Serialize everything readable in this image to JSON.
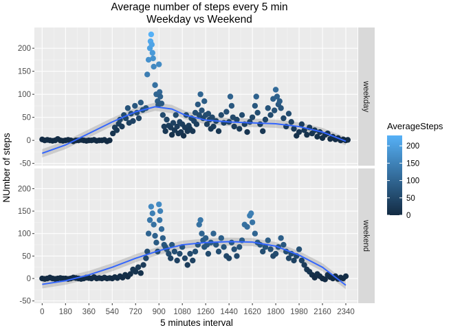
{
  "chart_data": {
    "type": "scatter",
    "title": [
      "Average number of steps every 5 min",
      "Weekday vs Weekend"
    ],
    "xlabel": "5 minutes interval",
    "ylabel": "NUmber of steps",
    "xlim": [
      -60,
      2430
    ],
    "ylim": [
      -55,
      245
    ],
    "x_ticks": [
      "0",
      "180",
      "360",
      "540",
      "720",
      "900",
      "1080",
      "1260",
      "1440",
      "1620",
      "1800",
      "1980",
      "2160",
      "2340"
    ],
    "y_ticks": [
      "-50",
      "0",
      "50",
      "100",
      "150",
      "200"
    ],
    "grid": true,
    "legend": {
      "title": "AverageSteps",
      "ticks": [
        "0",
        "50",
        "100",
        "150",
        "200"
      ],
      "min": 0,
      "max": 230,
      "color_low": "#132B43",
      "color_high": "#56B1F7",
      "placement": "right"
    },
    "smooth_color": "#3366FF",
    "panels": [
      {
        "label": "weekday",
        "points": [
          [
            0,
            2
          ],
          [
            20,
            0
          ],
          [
            40,
            1
          ],
          [
            60,
            0
          ],
          [
            80,
            -1
          ],
          [
            100,
            0
          ],
          [
            120,
            3
          ],
          [
            140,
            0
          ],
          [
            160,
            -1
          ],
          [
            180,
            0
          ],
          [
            200,
            1
          ],
          [
            220,
            0
          ],
          [
            240,
            -2
          ],
          [
            260,
            0
          ],
          [
            280,
            0
          ],
          [
            300,
            1
          ],
          [
            320,
            0
          ],
          [
            340,
            -1
          ],
          [
            360,
            0
          ],
          [
            380,
            0
          ],
          [
            400,
            1
          ],
          [
            420,
            -1
          ],
          [
            440,
            0
          ],
          [
            460,
            0
          ],
          [
            480,
            1
          ],
          [
            500,
            -2
          ],
          [
            520,
            0
          ],
          [
            545,
            15
          ],
          [
            560,
            28
          ],
          [
            575,
            22
          ],
          [
            590,
            36
          ],
          [
            600,
            45
          ],
          [
            615,
            30
          ],
          [
            630,
            55
          ],
          [
            645,
            48
          ],
          [
            660,
            70
          ],
          [
            670,
            38
          ],
          [
            685,
            58
          ],
          [
            700,
            42
          ],
          [
            715,
            75
          ],
          [
            730,
            60
          ],
          [
            745,
            48
          ],
          [
            760,
            82
          ],
          [
            775,
            66
          ],
          [
            800,
            70
          ],
          [
            810,
            143
          ],
          [
            820,
            175
          ],
          [
            830,
            200
          ],
          [
            835,
            215
          ],
          [
            840,
            230
          ],
          [
            845,
            208
          ],
          [
            850,
            190
          ],
          [
            855,
            178
          ],
          [
            860,
            160
          ],
          [
            870,
            120
          ],
          [
            880,
            100
          ],
          [
            890,
            85
          ],
          [
            895,
            77
          ],
          [
            900,
            165
          ],
          [
            905,
            105
          ],
          [
            910,
            95
          ],
          [
            920,
            80
          ],
          [
            930,
            55
          ],
          [
            940,
            30
          ],
          [
            950,
            20
          ],
          [
            960,
            45
          ],
          [
            975,
            32
          ],
          [
            990,
            28
          ],
          [
            1000,
            12
          ],
          [
            1010,
            38
          ],
          [
            1020,
            22
          ],
          [
            1030,
            55
          ],
          [
            1040,
            30
          ],
          [
            1050,
            15
          ],
          [
            1060,
            40
          ],
          [
            1070,
            18
          ],
          [
            1080,
            35
          ],
          [
            1090,
            10
          ],
          [
            1100,
            28
          ],
          [
            1110,
            55
          ],
          [
            1120,
            20
          ],
          [
            1130,
            32
          ],
          [
            1140,
            25
          ],
          [
            1150,
            48
          ],
          [
            1160,
            20
          ],
          [
            1170,
            42
          ],
          [
            1180,
            60
          ],
          [
            1190,
            35
          ],
          [
            1200,
            78
          ],
          [
            1210,
            55
          ],
          [
            1220,
            100
          ],
          [
            1230,
            65
          ],
          [
            1240,
            48
          ],
          [
            1250,
            85
          ],
          [
            1260,
            55
          ],
          [
            1270,
            35
          ],
          [
            1280,
            58
          ],
          [
            1290,
            45
          ],
          [
            1300,
            25
          ],
          [
            1310,
            50
          ],
          [
            1320,
            30
          ],
          [
            1340,
            42
          ],
          [
            1360,
            20
          ],
          [
            1380,
            55
          ],
          [
            1400,
            38
          ],
          [
            1420,
            62
          ],
          [
            1440,
            40
          ],
          [
            1450,
            95
          ],
          [
            1460,
            75
          ],
          [
            1470,
            50
          ],
          [
            1480,
            30
          ],
          [
            1500,
            45
          ],
          [
            1520,
            25
          ],
          [
            1540,
            55
          ],
          [
            1560,
            35
          ],
          [
            1580,
            18
          ],
          [
            1600,
            40
          ],
          [
            1620,
            50
          ],
          [
            1640,
            75
          ],
          [
            1650,
            95
          ],
          [
            1660,
            60
          ],
          [
            1680,
            35
          ],
          [
            1700,
            20
          ],
          [
            1720,
            45
          ],
          [
            1740,
            70
          ],
          [
            1760,
            55
          ],
          [
            1780,
            90
          ],
          [
            1790,
            65
          ],
          [
            1800,
            110
          ],
          [
            1810,
            95
          ],
          [
            1820,
            78
          ],
          [
            1830,
            85
          ],
          [
            1840,
            70
          ],
          [
            1860,
            48
          ],
          [
            1880,
            30
          ],
          [
            1900,
            58
          ],
          [
            1920,
            40
          ],
          [
            1940,
            25
          ],
          [
            1960,
            10
          ],
          [
            1980,
            18
          ],
          [
            2000,
            35
          ],
          [
            2020,
            22
          ],
          [
            2040,
            12
          ],
          [
            2060,
            28
          ],
          [
            2080,
            15
          ],
          [
            2100,
            22
          ],
          [
            2120,
            8
          ],
          [
            2140,
            18
          ],
          [
            2160,
            5
          ],
          [
            2180,
            12
          ],
          [
            2200,
            15
          ],
          [
            2220,
            3
          ],
          [
            2240,
            8
          ],
          [
            2260,
            2
          ],
          [
            2280,
            5
          ],
          [
            2300,
            0
          ],
          [
            2320,
            2
          ],
          [
            2340,
            0
          ],
          [
            2355,
            1
          ]
        ],
        "smooth": [
          [
            0,
            -28
          ],
          [
            180,
            -10
          ],
          [
            360,
            15
          ],
          [
            540,
            40
          ],
          [
            720,
            62
          ],
          [
            870,
            73
          ],
          [
            1000,
            68
          ],
          [
            1100,
            55
          ],
          [
            1260,
            44
          ],
          [
            1440,
            40
          ],
          [
            1620,
            38
          ],
          [
            1800,
            36
          ],
          [
            1980,
            30
          ],
          [
            2160,
            18
          ],
          [
            2340,
            -2
          ]
        ],
        "band_halfwidth": 9
      },
      {
        "label": "weekend",
        "points": [
          [
            0,
            0
          ],
          [
            20,
            -1
          ],
          [
            40,
            0
          ],
          [
            60,
            2
          ],
          [
            80,
            0
          ],
          [
            100,
            -1
          ],
          [
            120,
            0
          ],
          [
            140,
            1
          ],
          [
            160,
            0
          ],
          [
            180,
            0
          ],
          [
            200,
            -1
          ],
          [
            220,
            0
          ],
          [
            240,
            2
          ],
          [
            260,
            1
          ],
          [
            280,
            0
          ],
          [
            300,
            -1
          ],
          [
            320,
            0
          ],
          [
            340,
            2
          ],
          [
            360,
            1
          ],
          [
            380,
            0
          ],
          [
            400,
            3
          ],
          [
            420,
            0
          ],
          [
            440,
            1
          ],
          [
            460,
            0
          ],
          [
            480,
            2
          ],
          [
            500,
            0
          ],
          [
            520,
            1
          ],
          [
            540,
            0
          ],
          [
            560,
            3
          ],
          [
            580,
            1
          ],
          [
            600,
            5
          ],
          [
            620,
            2
          ],
          [
            640,
            8
          ],
          [
            660,
            4
          ],
          [
            680,
            10
          ],
          [
            700,
            20
          ],
          [
            720,
            15
          ],
          [
            740,
            25
          ],
          [
            760,
            12
          ],
          [
            780,
            30
          ],
          [
            800,
            45
          ],
          [
            810,
            60
          ],
          [
            820,
            100
          ],
          [
            830,
            130
          ],
          [
            840,
            160
          ],
          [
            850,
            145
          ],
          [
            860,
            120
          ],
          [
            870,
            95
          ],
          [
            880,
            80
          ],
          [
            890,
            60
          ],
          [
            900,
            165
          ],
          [
            905,
            130
          ],
          [
            910,
            150
          ],
          [
            920,
            110
          ],
          [
            930,
            90
          ],
          [
            940,
            75
          ],
          [
            950,
            70
          ],
          [
            960,
            65
          ],
          [
            975,
            55
          ],
          [
            990,
            45
          ],
          [
            1000,
            75
          ],
          [
            1020,
            60
          ],
          [
            1040,
            40
          ],
          [
            1060,
            55
          ],
          [
            1080,
            70
          ],
          [
            1100,
            45
          ],
          [
            1120,
            30
          ],
          [
            1140,
            55
          ],
          [
            1160,
            40
          ],
          [
            1180,
            60
          ],
          [
            1200,
            75
          ],
          [
            1210,
            120
          ],
          [
            1220,
            130
          ],
          [
            1230,
            100
          ],
          [
            1240,
            85
          ],
          [
            1250,
            70
          ],
          [
            1260,
            90
          ],
          [
            1270,
            75
          ],
          [
            1280,
            55
          ],
          [
            1300,
            80
          ],
          [
            1320,
            100
          ],
          [
            1340,
            75
          ],
          [
            1360,
            60
          ],
          [
            1380,
            90
          ],
          [
            1400,
            70
          ],
          [
            1420,
            50
          ],
          [
            1440,
            45
          ],
          [
            1460,
            80
          ],
          [
            1480,
            65
          ],
          [
            1500,
            50
          ],
          [
            1520,
            70
          ],
          [
            1540,
            85
          ],
          [
            1560,
            120
          ],
          [
            1580,
            115
          ],
          [
            1600,
            140
          ],
          [
            1610,
            145
          ],
          [
            1620,
            125
          ],
          [
            1640,
            100
          ],
          [
            1660,
            80
          ],
          [
            1680,
            75
          ],
          [
            1700,
            60
          ],
          [
            1720,
            70
          ],
          [
            1740,
            85
          ],
          [
            1760,
            65
          ],
          [
            1780,
            50
          ],
          [
            1800,
            55
          ],
          [
            1820,
            70
          ],
          [
            1840,
            90
          ],
          [
            1860,
            75
          ],
          [
            1880,
            60
          ],
          [
            1900,
            45
          ],
          [
            1920,
            55
          ],
          [
            1940,
            40
          ],
          [
            1960,
            50
          ],
          [
            1980,
            65
          ],
          [
            2000,
            40
          ],
          [
            2020,
            30
          ],
          [
            2040,
            20
          ],
          [
            2060,
            15
          ],
          [
            2080,
            8
          ],
          [
            2100,
            2
          ],
          [
            2120,
            10
          ],
          [
            2140,
            5
          ],
          [
            2160,
            0
          ],
          [
            2180,
            -2
          ],
          [
            2200,
            8
          ],
          [
            2220,
            3
          ],
          [
            2240,
            0
          ],
          [
            2260,
            5
          ],
          [
            2280,
            -1
          ],
          [
            2300,
            2
          ],
          [
            2320,
            0
          ],
          [
            2340,
            5
          ]
        ],
        "smooth": [
          [
            0,
            -13
          ],
          [
            180,
            -5
          ],
          [
            360,
            8
          ],
          [
            540,
            25
          ],
          [
            720,
            45
          ],
          [
            900,
            62
          ],
          [
            1080,
            75
          ],
          [
            1260,
            80
          ],
          [
            1440,
            82
          ],
          [
            1620,
            81
          ],
          [
            1800,
            72
          ],
          [
            1980,
            52
          ],
          [
            2160,
            25
          ],
          [
            2340,
            -15
          ]
        ],
        "band_halfwidth": 9
      }
    ]
  }
}
